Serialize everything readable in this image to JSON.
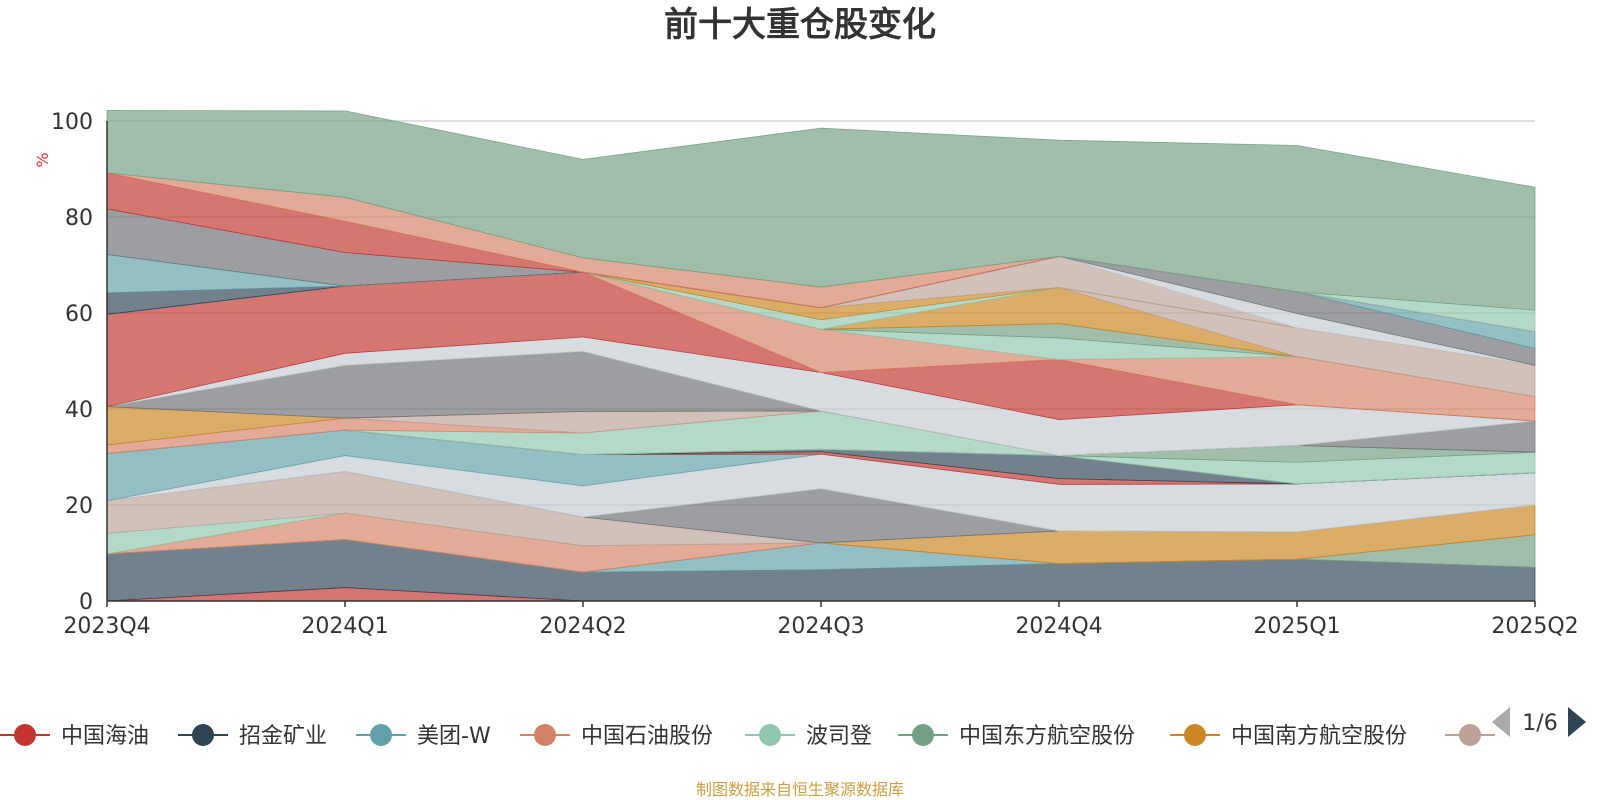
{
  "colors": {
    "axis": "#333333",
    "grid": "#cccccc",
    "unit": "#e03030",
    "source": "#c8a040",
    "pager_active": "#2f4554",
    "pager_inactive": "#aaaaaa"
  },
  "legend": {
    "page": "1/6",
    "items": [
      {
        "name": "中国海油",
        "color": "#c23531"
      },
      {
        "name": "招金矿业",
        "color": "#2f4554"
      },
      {
        "name": "美团-W",
        "color": "#61a0a8"
      },
      {
        "name": "中国石油股份",
        "color": "#d48265"
      },
      {
        "name": "波司登",
        "color": "#91c7ae"
      },
      {
        "name": "中国东方航空股份",
        "color": "#749f83"
      },
      {
        "name": "中国南方航空股份",
        "color": "#ca8622"
      },
      {
        "name": "",
        "color": "#bda29a"
      }
    ]
  },
  "source_note": "制图数据来自恒生聚源数据库",
  "chart_data": {
    "type": "area",
    "stacked": true,
    "title": "前十大重仓股变化",
    "ylabel": "%",
    "ylim": [
      0,
      100
    ],
    "yticks": [
      0,
      20,
      40,
      60,
      80,
      100
    ],
    "grid": true,
    "legend_position": "bottom",
    "categories": [
      "2023Q4",
      "2024Q1",
      "2024Q2",
      "2024Q3",
      "2024Q4",
      "2025Q1",
      "2025Q2"
    ],
    "layers": [
      {
        "color": "#c23531",
        "values": [
          0.0,
          2.8,
          0.0,
          0.0,
          0.0,
          0.0,
          0.0
        ]
      },
      {
        "color": "#2f4554",
        "values": [
          9.8,
          10.0,
          6.0,
          6.5,
          7.8,
          8.7,
          7.0
        ]
      },
      {
        "color": "#61a0a8",
        "values": [
          0.0,
          0.0,
          0.0,
          5.6,
          0.0,
          0.0,
          0.0
        ]
      },
      {
        "color": "#749f83",
        "values": [
          0.0,
          0.0,
          0.0,
          0.0,
          0.0,
          0.0,
          6.8
        ]
      },
      {
        "color": "#d48265",
        "values": [
          0.0,
          5.5,
          5.5,
          0.0,
          0.0,
          0.0,
          0.0
        ]
      },
      {
        "color": "#ca8622",
        "values": [
          0.0,
          0.0,
          0.0,
          0.0,
          6.8,
          5.7,
          6.2
        ]
      },
      {
        "color": "#91c7ae",
        "values": [
          4.3,
          0.0,
          0.0,
          0.0,
          0.0,
          0.0,
          0.0
        ]
      },
      {
        "color": "#bda29a",
        "values": [
          6.8,
          8.7,
          6.0,
          0.0,
          0.0,
          0.0,
          0.0
        ]
      },
      {
        "color": "#6e7074",
        "values": [
          0.0,
          0.0,
          0.0,
          11.3,
          0.0,
          0.0,
          0.0
        ]
      },
      {
        "color": "#c4ccd3",
        "values": [
          0.0,
          3.3,
          6.5,
          7.2,
          9.7,
          10.0,
          6.7
        ]
      },
      {
        "color": "#61a0a8",
        "values": [
          9.8,
          5.3,
          6.5,
          0.0,
          0.0,
          0.0,
          0.0
        ]
      },
      {
        "color": "#c23531",
        "values": [
          0.0,
          0.0,
          0.0,
          0.5,
          1.2,
          0.0,
          0.0
        ]
      },
      {
        "color": "#2f4554",
        "values": [
          0.0,
          0.0,
          0.0,
          0.5,
          4.8,
          0.0,
          0.0
        ]
      },
      {
        "color": "#91c7ae",
        "values": [
          0.0,
          0.0,
          0.0,
          0.0,
          0.0,
          4.5,
          4.3
        ]
      },
      {
        "color": "#749f83",
        "values": [
          0.0,
          0.0,
          0.0,
          0.0,
          0.0,
          3.5,
          0.0
        ]
      },
      {
        "color": "#6e7074",
        "values": [
          0.0,
          0.0,
          0.0,
          0.0,
          0.0,
          0.0,
          6.5
        ]
      },
      {
        "color": "#91c7ae",
        "values": [
          0.0,
          0.0,
          4.5,
          8.0,
          0.0,
          0.0,
          0.0
        ]
      },
      {
        "color": "#d48265",
        "values": [
          1.8,
          2.5,
          0.0,
          0.0,
          0.0,
          0.0,
          0.0
        ]
      },
      {
        "color": "#bda29a",
        "values": [
          0.0,
          0.0,
          4.5,
          0.0,
          0.0,
          0.0,
          0.0
        ]
      },
      {
        "color": "#ca8622",
        "values": [
          8.0,
          0.0,
          0.0,
          0.0,
          0.0,
          0.0,
          0.0
        ]
      },
      {
        "color": "#6e7074",
        "values": [
          0.0,
          11.0,
          12.5,
          0.0,
          0.0,
          0.0,
          0.0
        ]
      },
      {
        "color": "#c4ccd3",
        "values": [
          0.0,
          2.5,
          3.0,
          8.0,
          7.5,
          8.5,
          0.0
        ]
      },
      {
        "color": "#c23531",
        "values": [
          19.2,
          14.0,
          13.5,
          0.0,
          12.5,
          0.0,
          0.0
        ]
      },
      {
        "color": "#d48265",
        "values": [
          0.0,
          0.0,
          0.0,
          9.0,
          0.0,
          10.0,
          5.1
        ]
      },
      {
        "color": "#91c7ae",
        "values": [
          0.0,
          0.0,
          0.0,
          0.0,
          4.5,
          0.0,
          0.0
        ]
      },
      {
        "color": "#749f83",
        "values": [
          0.0,
          0.0,
          0.0,
          0.0,
          3.0,
          0.0,
          0.0
        ]
      },
      {
        "color": "#ca8622",
        "values": [
          0.0,
          0.0,
          0.0,
          0.0,
          7.5,
          0.0,
          0.0
        ]
      },
      {
        "color": "#bda29a",
        "values": [
          0.0,
          0.0,
          0.0,
          0.0,
          0.0,
          6.0,
          6.5
        ]
      },
      {
        "color": "#91c7ae",
        "values": [
          0.0,
          0.0,
          0.0,
          2.0,
          0.0,
          0.0,
          0.0
        ]
      },
      {
        "color": "#ca8622",
        "values": [
          0.0,
          0.0,
          0.0,
          2.5,
          0.0,
          0.0,
          0.0
        ]
      },
      {
        "color": "#bda29a",
        "values": [
          0.0,
          0.0,
          0.0,
          0.0,
          6.5,
          0.0,
          0.0
        ]
      },
      {
        "color": "#c4ccd3",
        "values": [
          0.0,
          0.0,
          0.0,
          0.0,
          0.0,
          3.0,
          0.0
        ]
      },
      {
        "color": "#6e7074",
        "values": [
          0.0,
          0.0,
          0.0,
          0.0,
          0.0,
          4.5,
          3.5
        ]
      },
      {
        "color": "#61a0a8",
        "values": [
          0.0,
          0.0,
          0.0,
          0.0,
          0.0,
          0.0,
          3.5
        ]
      },
      {
        "color": "#2f4554",
        "values": [
          4.5,
          0.0,
          0.0,
          0.0,
          0.0,
          0.0,
          0.0
        ]
      },
      {
        "color": "#61a0a8",
        "values": [
          8.0,
          0.0,
          0.0,
          0.0,
          0.0,
          0.0,
          0.0
        ]
      },
      {
        "color": "#6e7074",
        "values": [
          9.5,
          7.0,
          0.0,
          0.0,
          0.0,
          0.0,
          0.0
        ]
      },
      {
        "color": "#c23531",
        "values": [
          7.5,
          6.5,
          0.0,
          0.0,
          0.0,
          0.0,
          0.0
        ]
      },
      {
        "color": "#d48265",
        "values": [
          0.0,
          5.0,
          3.0,
          4.3,
          0.0,
          0.0,
          0.0
        ]
      },
      {
        "color": "#91c7ae",
        "values": [
          0.0,
          0.0,
          0.0,
          0.0,
          0.0,
          0.0,
          4.5
        ]
      },
      {
        "color": "#749f83",
        "values": [
          13.0,
          18.0,
          20.5,
          33.1,
          24.2,
          30.5,
          25.6
        ]
      }
    ]
  }
}
